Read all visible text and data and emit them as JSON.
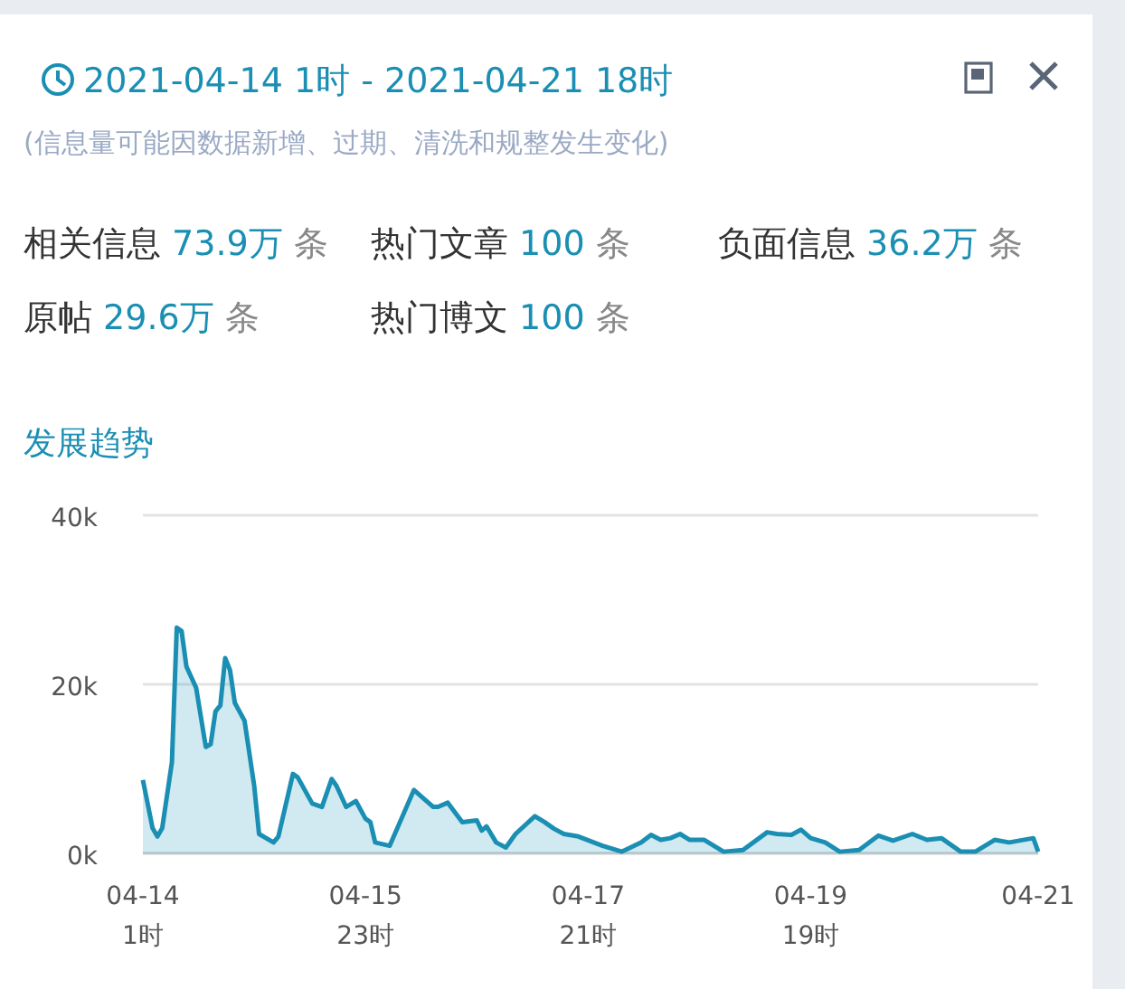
{
  "chart_data": {
    "type": "area",
    "title": "2021-04-14 1时 - 2021-04-21 18时",
    "subtitle": "(信息量可能因数据新增、过期、清洗和规整发生变化)",
    "annotations": [
      "相关信息 73.9万 条",
      "热门文章 100 条",
      "负面信息 36.2万 条",
      "原帖 29.6万 条",
      "热门博文 100 条",
      "发展趋势"
    ],
    "series": [
      {
        "color": "#1a8fb3",
        "x": [
          "2021-04-14T01:00",
          "2021-04-14T03:00",
          "2021-04-14T04:00",
          "2021-04-14T05:00",
          "2021-04-14T07:00",
          "2021-04-14T08:00",
          "2021-04-14T09:00",
          "2021-04-14T10:00",
          "2021-04-14T12:00",
          "2021-04-14T14:00",
          "2021-04-14T15:00",
          "2021-04-14T16:00",
          "2021-04-14T17:00",
          "2021-04-14T18:00",
          "2021-04-14T19:00",
          "2021-04-14T20:00",
          "2021-04-14T22:00",
          "2021-04-15T00:00",
          "2021-04-15T01:00",
          "2021-04-15T04:00",
          "2021-04-15T05:00",
          "2021-04-15T08:00",
          "2021-04-15T09:00",
          "2021-04-15T12:00",
          "2021-04-15T14:00",
          "2021-04-15T16:00",
          "2021-04-15T17:00",
          "2021-04-15T19:00",
          "2021-04-15T21:00",
          "2021-04-15T23:00",
          "2021-04-16T00:00",
          "2021-04-16T01:00",
          "2021-04-16T04:00",
          "2021-04-16T09:00",
          "2021-04-16T13:00",
          "2021-04-16T14:00",
          "2021-04-16T16:00",
          "2021-04-16T19:00",
          "2021-04-16T22:00",
          "2021-04-16T23:00",
          "2021-04-17T00:00",
          "2021-04-17T02:00",
          "2021-04-17T04:00",
          "2021-04-17T06:00",
          "2021-04-17T10:00",
          "2021-04-17T12:00",
          "2021-04-17T14:00",
          "2021-04-17T16:00",
          "2021-04-17T19:00",
          "2021-04-18T00:00",
          "2021-04-18T04:00",
          "2021-04-18T08:00",
          "2021-04-18T10:00",
          "2021-04-18T12:00",
          "2021-04-18T14:00",
          "2021-04-18T16:00",
          "2021-04-18T18:00",
          "2021-04-18T21:00",
          "2021-04-19T01:00",
          "2021-04-19T05:00",
          "2021-04-19T10:00",
          "2021-04-19T12:00",
          "2021-04-19T15:00",
          "2021-04-19T17:00",
          "2021-04-19T19:00",
          "2021-04-19T22:00",
          "2021-04-20T01:00",
          "2021-04-20T05:00",
          "2021-04-20T09:00",
          "2021-04-20T12:00",
          "2021-04-20T16:00",
          "2021-04-20T19:00",
          "2021-04-20T22:00",
          "2021-04-21T02:00",
          "2021-04-21T05:00",
          "2021-04-21T09:00",
          "2021-04-21T12:00",
          "2021-04-21T17:00",
          "2021-04-21T18:00"
        ],
        "values": [
          8700,
          3000,
          2000,
          3000,
          10800,
          26700,
          26300,
          22100,
          19600,
          12600,
          12900,
          16800,
          17500,
          23100,
          21700,
          17800,
          15700,
          8000,
          2300,
          1300,
          2000,
          9400,
          9000,
          5900,
          5500,
          8800,
          8000,
          5500,
          6200,
          4100,
          3700,
          1300,
          900,
          7500,
          5500,
          5500,
          6000,
          3700,
          3900,
          2700,
          3200,
          1300,
          700,
          2300,
          4400,
          3700,
          2900,
          2300,
          2000,
          900,
          200,
          1300,
          2200,
          1600,
          1800,
          2300,
          1600,
          1600,
          200,
          400,
          2500,
          2300,
          2200,
          2800,
          1800,
          1300,
          200,
          400,
          2100,
          1500,
          2300,
          1600,
          1800,
          200,
          200,
          1600,
          1300,
          1800,
          200
        ]
      }
    ],
    "xlim": [
      "2021-04-14T01:00",
      "2021-04-21T18:00"
    ],
    "xticks": [
      {
        "value": "2021-04-14T01:00",
        "label": "04-14 1时"
      },
      {
        "value": "2021-04-15T23:00",
        "label": "04-15 23时"
      },
      {
        "value": "2021-04-17T21:00",
        "label": "04-17 21时"
      },
      {
        "value": "2021-04-19T19:00",
        "label": "04-19 19时"
      },
      {
        "value": "2021-04-21T18:00",
        "label": "04-21"
      }
    ],
    "ylim": [
      0,
      40000
    ],
    "yticks": [
      {
        "value": 0,
        "label": "0k"
      },
      {
        "value": 20000,
        "label": "20k"
      },
      {
        "value": 40000,
        "label": "40k"
      }
    ],
    "grid": "y"
  }
}
